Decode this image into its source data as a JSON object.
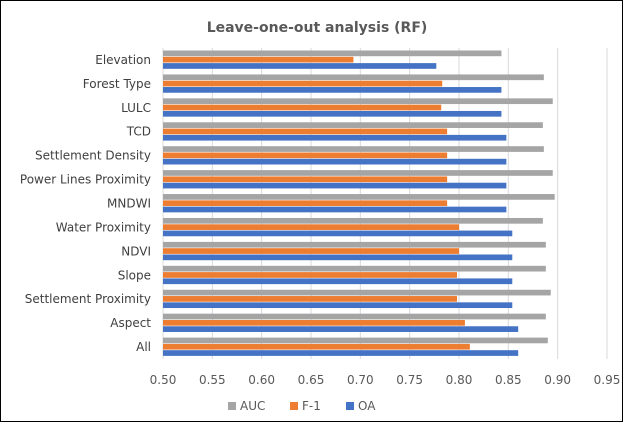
{
  "chart_data": {
    "type": "bar",
    "orientation": "horizontal",
    "title": "Leave-one-out analysis (RF)",
    "xlabel": "",
    "ylabel": "",
    "xlim": [
      0.5,
      0.95
    ],
    "xticks": [
      "0.50",
      "0.55",
      "0.60",
      "0.65",
      "0.70",
      "0.75",
      "0.80",
      "0.85",
      "0.90",
      "0.95"
    ],
    "grid": "vertical",
    "legend_position": "bottom",
    "categories": [
      "Elevation",
      "Forest Type",
      "LULC",
      "TCD",
      "Settlement Density",
      "Power Lines Proximity",
      "MNDWI",
      "Water Proximity",
      "NDVI",
      "Slope",
      "Settlement Proximity",
      "Aspect",
      "All"
    ],
    "series": [
      {
        "name": "AUC",
        "color": "#a5a5a5",
        "values": [
          0.843,
          0.886,
          0.895,
          0.885,
          0.886,
          0.895,
          0.897,
          0.885,
          0.888,
          0.888,
          0.893,
          0.888,
          0.89
        ]
      },
      {
        "name": "F-1",
        "color": "#ed7d31",
        "values": [
          0.693,
          0.783,
          0.782,
          0.788,
          0.788,
          0.788,
          0.788,
          0.8,
          0.8,
          0.798,
          0.798,
          0.806,
          0.811
        ]
      },
      {
        "name": "OA",
        "color": "#4472c4",
        "values": [
          0.777,
          0.843,
          0.843,
          0.848,
          0.848,
          0.848,
          0.848,
          0.854,
          0.854,
          0.854,
          0.854,
          0.86,
          0.86
        ]
      }
    ]
  }
}
